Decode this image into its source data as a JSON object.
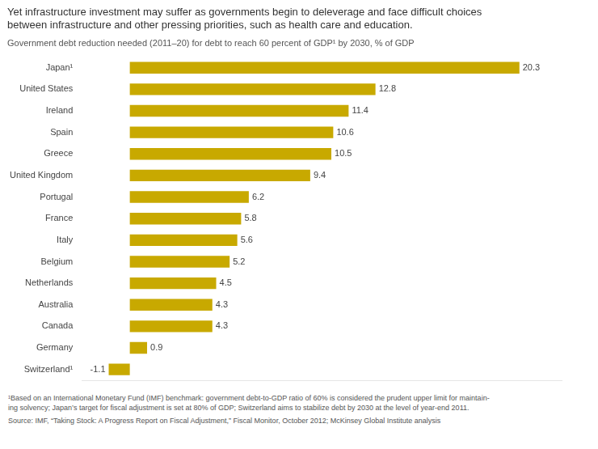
{
  "chart_data": {
    "type": "bar",
    "orientation": "horizontal",
    "title": [
      "Yet infrastructure investment may suffer as governments begin to deleverage and face difficult choices",
      "between infrastructure and other pressing priorities, such as health care and education."
    ],
    "subtitle": "Government debt reduction needed (2011–20) for debt to reach 60 percent of GDP¹ by 2030, % of GDP",
    "categories": [
      "Japan¹",
      "United States",
      "Ireland",
      "Spain",
      "Greece",
      "United Kingdom",
      "Portugal",
      "France",
      "Italy",
      "Belgium",
      "Netherlands",
      "Australia",
      "Canada",
      "Germany",
      "Switzerland¹"
    ],
    "values": [
      20.3,
      12.8,
      11.4,
      10.6,
      10.5,
      9.4,
      6.2,
      5.8,
      5.6,
      5.2,
      4.5,
      4.3,
      4.3,
      0.9,
      -1.1
    ],
    "color": "#C8A900",
    "xlim": [
      -2.5,
      22.5
    ],
    "grid": false,
    "data_labels": true,
    "tick_labels": "y",
    "annotations": [
      "¹Based on an International Monetary Fund (IMF) benchmark: government debt-to-GDP ratio of 60% is considered the prudent upper limit for maintain-\ning solvency; Japan’s target for fiscal adjustment is set at 80% of GDP; Switzerland aims to stabilize debt by 2030 at the level of year-end 2011.",
      "Source: IMF, “Taking Stock: A Progress Report on Fiscal Adjustment,” Fiscal Monitor, October 2012; McKinsey Global Institute analysis"
    ]
  }
}
